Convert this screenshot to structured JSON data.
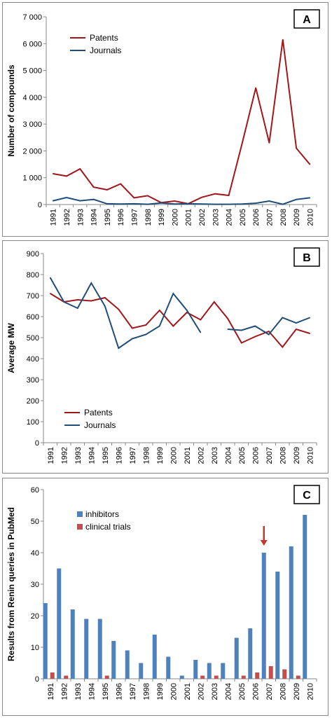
{
  "chart_data": [
    {
      "id": "A",
      "type": "line",
      "badge": "A",
      "xlabel": "",
      "ylabel": "Number of compounds",
      "categories": [
        "1991",
        "1992",
        "1993",
        "1994",
        "1995",
        "1996",
        "1997",
        "1998",
        "1999",
        "2000",
        "2001",
        "2002",
        "2003",
        "2004",
        "2005",
        "2006",
        "2007",
        "2008",
        "2009",
        "2010"
      ],
      "ylim": [
        0,
        7000
      ],
      "yticks": [
        "0",
        "1 000",
        "2 000",
        "3 000",
        "4 000",
        "5 000",
        "6 000",
        "7 000"
      ],
      "ytick_values": [
        0,
        1000,
        2000,
        3000,
        4000,
        5000,
        6000,
        7000
      ],
      "grid": false,
      "legend_position": "top-left",
      "series": [
        {
          "name": "Patents",
          "color": "#a0181c",
          "values": [
            1150,
            1060,
            1330,
            650,
            550,
            770,
            250,
            330,
            70,
            130,
            30,
            270,
            400,
            340,
            2300,
            4350,
            2300,
            6150,
            2100,
            1500
          ]
        },
        {
          "name": "Journals",
          "color": "#1f4e79",
          "values": [
            140,
            260,
            140,
            190,
            30,
            20,
            30,
            10,
            60,
            20,
            30,
            20,
            10,
            10,
            20,
            50,
            130,
            10,
            190,
            250
          ]
        }
      ]
    },
    {
      "id": "B",
      "type": "line",
      "badge": "B",
      "xlabel": "",
      "ylabel": "Average MW",
      "categories": [
        "1991",
        "1992",
        "1993",
        "1994",
        "1995",
        "1996",
        "1997",
        "1998",
        "1999",
        "2000",
        "2001",
        "2002",
        "2003",
        "2004",
        "2005",
        "2006",
        "2007",
        "2008",
        "2009",
        "2010"
      ],
      "ylim": [
        0,
        900
      ],
      "yticks": [
        "0",
        "100",
        "200",
        "300",
        "400",
        "500",
        "600",
        "700",
        "800",
        "900"
      ],
      "ytick_values": [
        0,
        100,
        200,
        300,
        400,
        500,
        600,
        700,
        800,
        900
      ],
      "grid": false,
      "legend_position": "bottom-left",
      "series": [
        {
          "name": "Patents",
          "color": "#a0181c",
          "values": [
            710,
            670,
            680,
            675,
            690,
            635,
            545,
            560,
            630,
            555,
            620,
            585,
            670,
            590,
            475,
            505,
            530,
            455,
            540,
            520
          ]
        },
        {
          "name": "Journals",
          "color": "#1f4e79",
          "values": [
            785,
            670,
            640,
            760,
            650,
            450,
            495,
            515,
            555,
            710,
            630,
            525,
            null,
            540,
            535,
            555,
            515,
            595,
            570,
            595
          ]
        }
      ]
    },
    {
      "id": "C",
      "type": "bar",
      "badge": "C",
      "xlabel": "",
      "ylabel": "Results from Renin queries in PubMed",
      "categories": [
        "1991",
        "1992",
        "1993",
        "1994",
        "1995",
        "1996",
        "1997",
        "1998",
        "1999",
        "2000",
        "2001",
        "2002",
        "2003",
        "2004",
        "2005",
        "2006",
        "2007",
        "2008",
        "2009",
        "2010"
      ],
      "ylim": [
        0,
        60
      ],
      "yticks": [
        "0",
        "10",
        "20",
        "30",
        "40",
        "50",
        "60"
      ],
      "ytick_values": [
        0,
        10,
        20,
        30,
        40,
        50,
        60
      ],
      "grid": false,
      "legend_position": "top-left",
      "annotation": {
        "type": "arrow",
        "category": "2007",
        "color": "#c0392b"
      },
      "series": [
        {
          "name": "inhibitors",
          "color": "#4f81bd",
          "values": [
            24,
            35,
            22,
            19,
            19,
            12,
            9,
            5,
            14,
            7,
            1,
            6,
            5,
            5,
            13,
            16,
            40,
            34,
            42,
            52
          ]
        },
        {
          "name": "clinical trials",
          "color": "#c0504d",
          "values": [
            2,
            1,
            0,
            0,
            1,
            0,
            0,
            0,
            0,
            0,
            0,
            1,
            1,
            0,
            1,
            2,
            4,
            3,
            1,
            0
          ]
        }
      ]
    }
  ]
}
